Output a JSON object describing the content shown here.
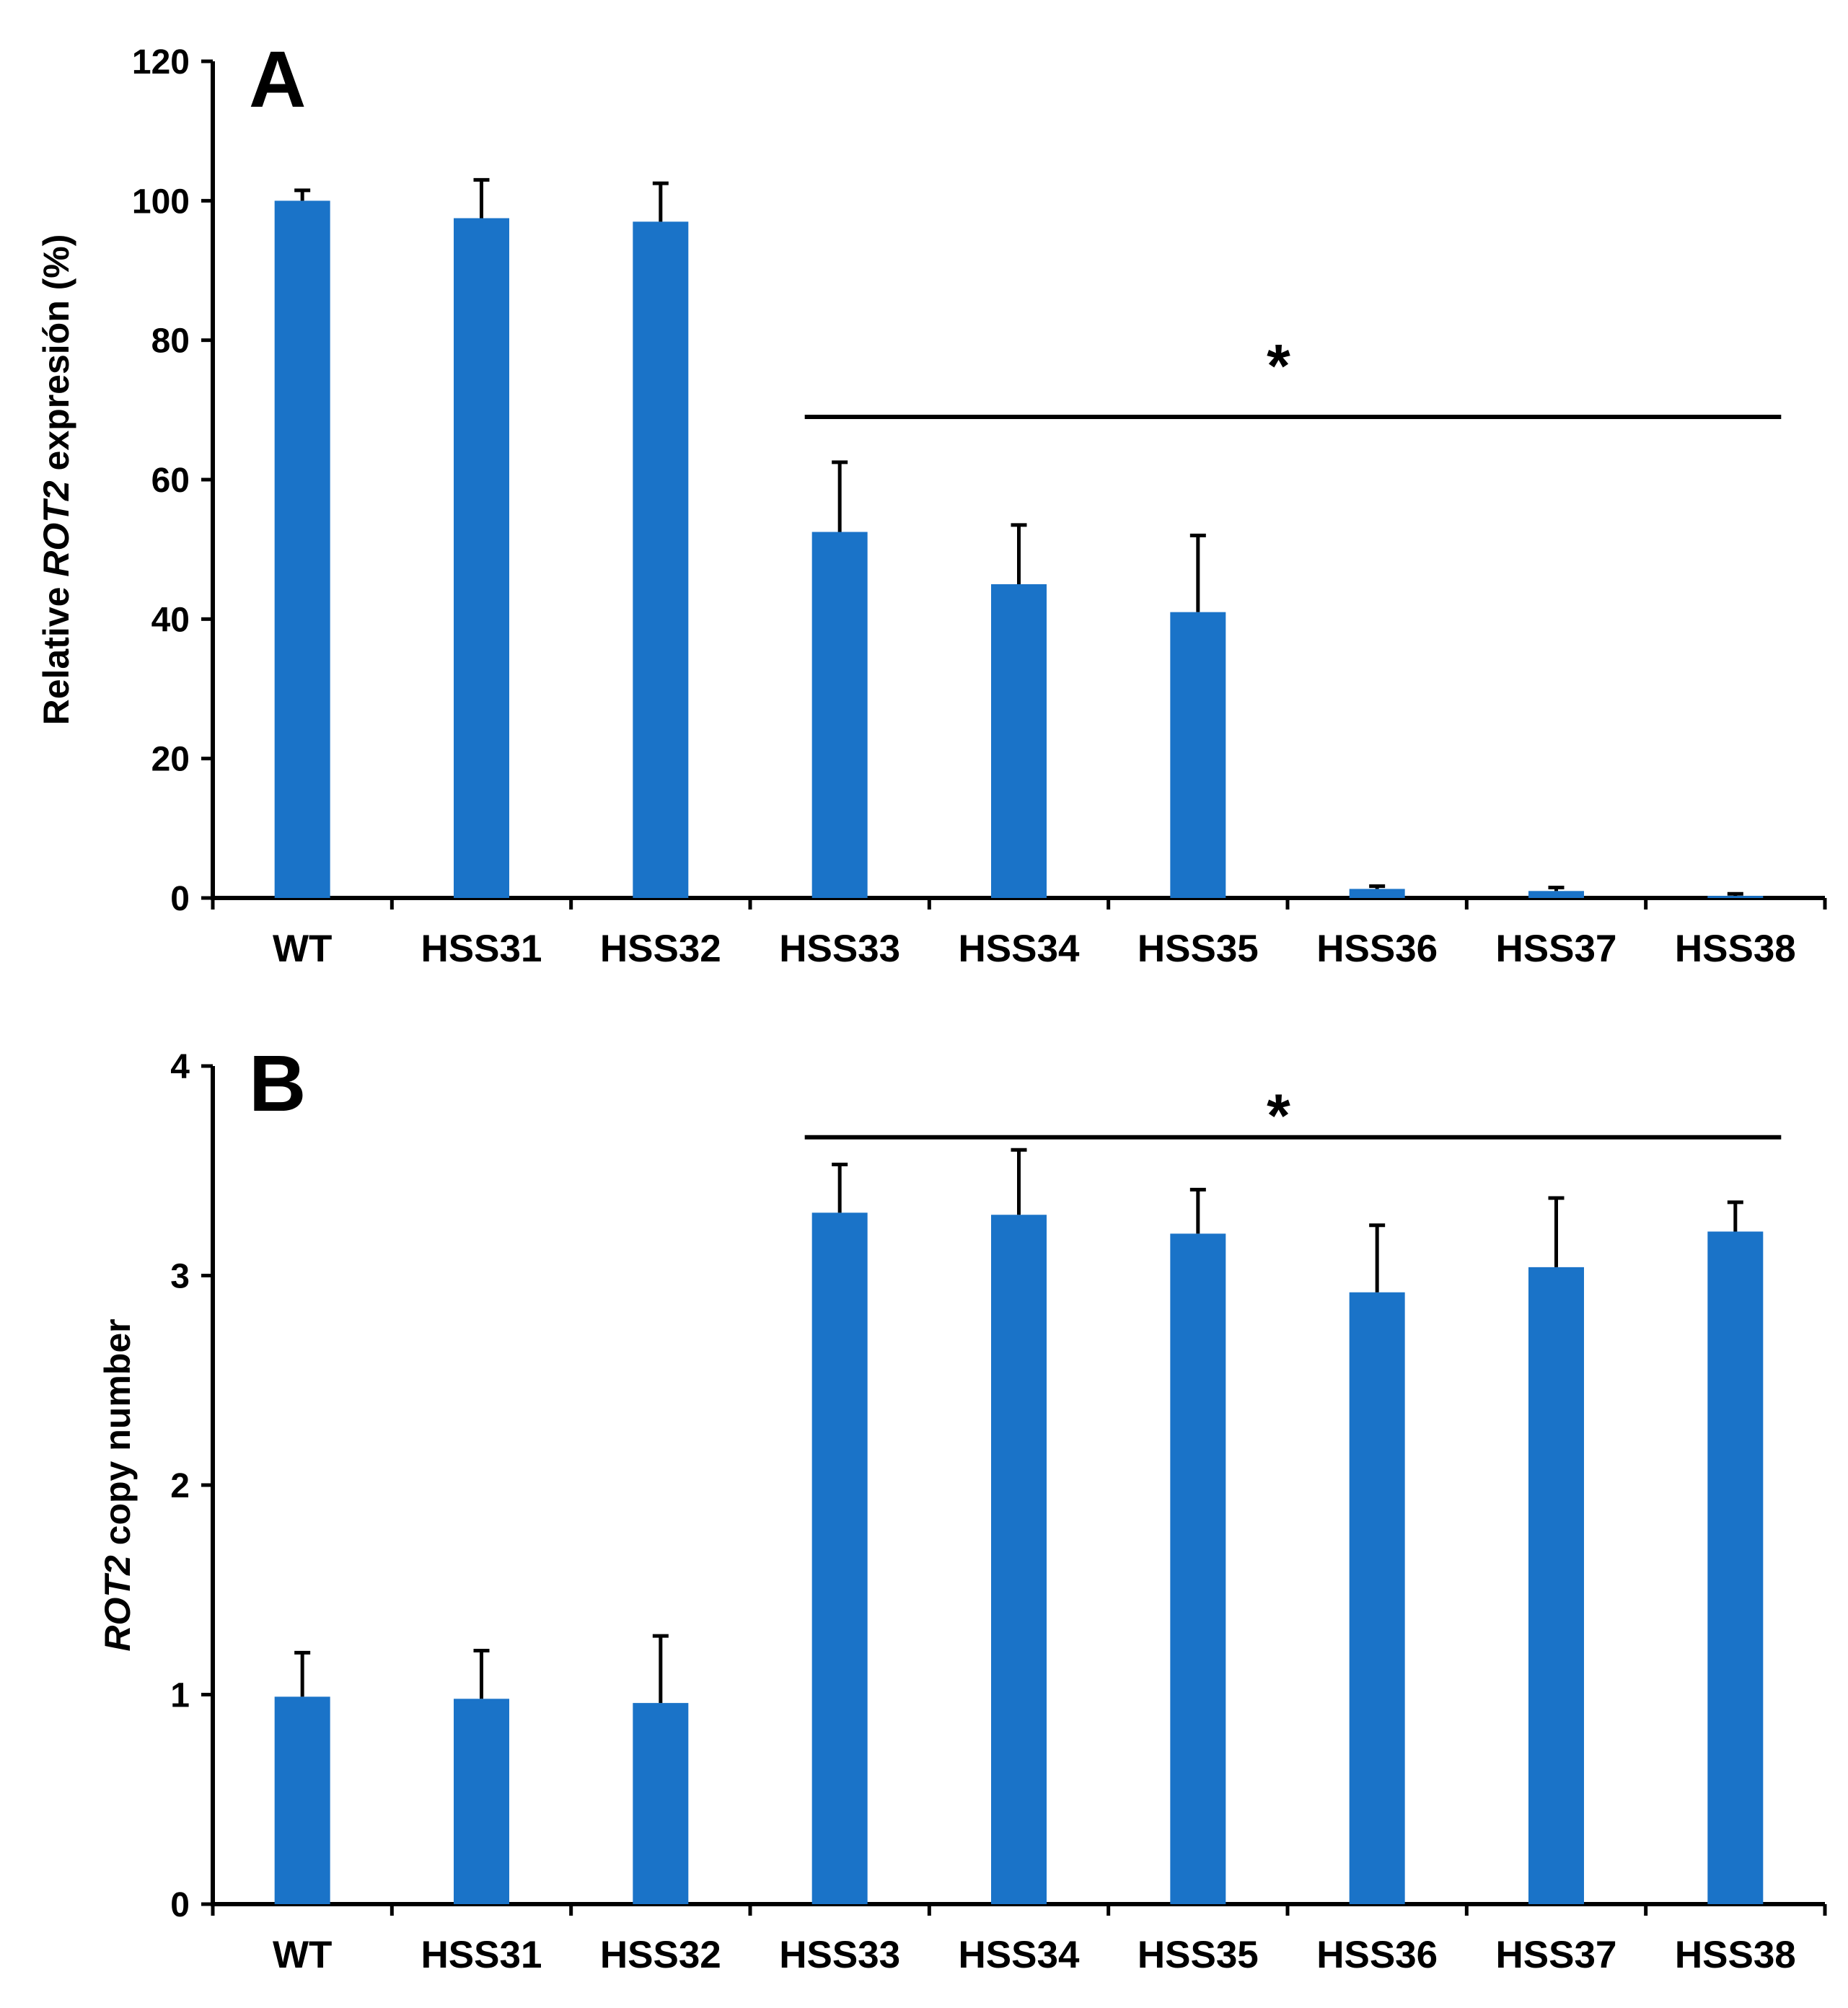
{
  "colors": {
    "bar": "#1a73c8",
    "axis": "#000000"
  },
  "chart_data": [
    {
      "type": "bar",
      "panel_letter": "A",
      "title": "",
      "xlabel": "",
      "ylabel_parts": [
        "Relative ",
        "ROT2",
        " expresión (%)"
      ],
      "ylim": [
        0,
        120
      ],
      "yticks": [
        0,
        20,
        40,
        60,
        80,
        100,
        120
      ],
      "categories": [
        "WT",
        "HSS31",
        "HSS32",
        "HSS33",
        "HSS34",
        "HSS35",
        "HSS36",
        "HSS37",
        "HSS38"
      ],
      "values": [
        100,
        97.5,
        97,
        52.5,
        45,
        41,
        1.3,
        1,
        0.3
      ],
      "errors": [
        1.5,
        5.5,
        5.5,
        10,
        8.5,
        11,
        0.4,
        0.5,
        0.3
      ],
      "significance": {
        "symbol": "*",
        "from": "HSS33",
        "to": "HSS38",
        "line_value": 69,
        "label_value": 78
      }
    },
    {
      "type": "bar",
      "panel_letter": "B",
      "title": "",
      "xlabel": "",
      "ylabel_parts": [
        "",
        "ROT2",
        " copy number"
      ],
      "ylim": [
        0,
        4
      ],
      "yticks": [
        0,
        1,
        2,
        3,
        4
      ],
      "categories": [
        "WT",
        "HSS31",
        "HSS32",
        "HSS33",
        "HSS34",
        "HSS35",
        "HSS36",
        "HSS37",
        "HSS38"
      ],
      "values": [
        0.99,
        0.98,
        0.96,
        3.3,
        3.29,
        3.2,
        2.92,
        3.04,
        3.21
      ],
      "errors": [
        0.21,
        0.23,
        0.32,
        0.23,
        0.31,
        0.21,
        0.32,
        0.33,
        0.14
      ],
      "significance": {
        "symbol": "*",
        "from": "HSS33",
        "to": "HSS38",
        "line_value": 3.66,
        "label_value": 3.82
      }
    }
  ]
}
